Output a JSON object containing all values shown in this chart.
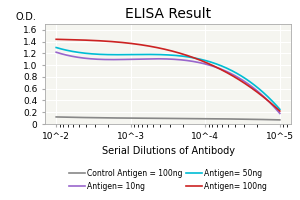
{
  "title": "ELISA Result",
  "ylabel": "O.D.",
  "xlabel": "Serial Dilutions of Antibody",
  "x_ticks_labels": [
    "10^-2",
    "10^-3",
    "10^-4",
    "10^-5"
  ],
  "x_values": [
    0.01,
    0.001,
    0.0001,
    1e-05
  ],
  "ylim": [
    0,
    1.7
  ],
  "yticks": [
    0,
    0.2,
    0.4,
    0.6,
    0.8,
    1.0,
    1.2,
    1.4,
    1.6
  ],
  "series": [
    {
      "label": "Control Antigen = 100ng",
      "color": "#888888",
      "values": [
        0.12,
        0.1,
        0.09,
        0.07
      ]
    },
    {
      "label": "Antigen= 10ng",
      "color": "#9966cc",
      "values": [
        1.22,
        1.1,
        1.02,
        0.18
      ]
    },
    {
      "label": "Antigen= 50ng",
      "color": "#00bcd4",
      "values": [
        1.3,
        1.18,
        1.08,
        0.25
      ]
    },
    {
      "label": "Antigen= 100ng",
      "color": "#cc2222",
      "values": [
        1.44,
        1.37,
        1.05,
        0.22
      ]
    }
  ],
  "background_color": "#f5f5f0",
  "grid_color": "#ffffff",
  "title_fontsize": 10,
  "label_fontsize": 7,
  "tick_fontsize": 6.5,
  "legend_fontsize": 5.5
}
